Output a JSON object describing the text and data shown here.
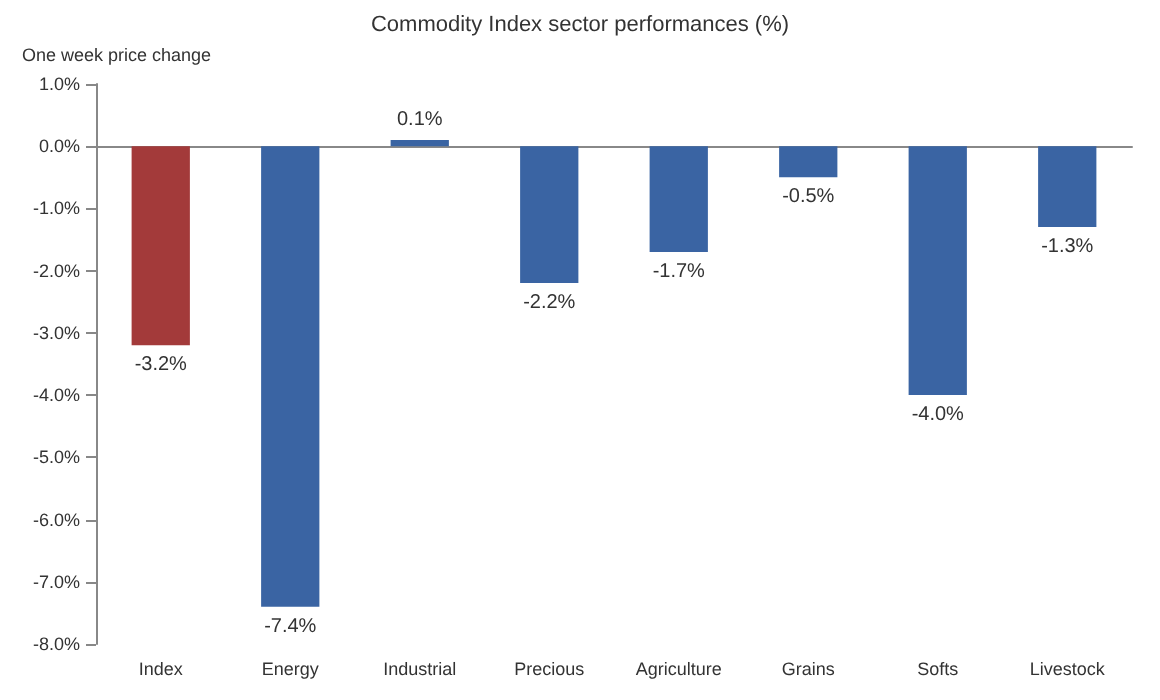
{
  "chart_data": {
    "type": "bar",
    "title": "Commodity Index sector performances (%)",
    "subtitle": "One week price change",
    "categories": [
      "Index",
      "Energy",
      "Industrial",
      "Precious",
      "Agriculture",
      "Grains",
      "Softs",
      "Livestock"
    ],
    "values": [
      -3.2,
      -7.4,
      0.1,
      -2.2,
      -1.7,
      -0.5,
      -4.0,
      -1.3
    ],
    "colors": [
      "#a33a3a",
      "#3a64a3",
      "#3a64a3",
      "#3a64a3",
      "#3a64a3",
      "#3a64a3",
      "#3a64a3",
      "#3a64a3"
    ],
    "value_labels": [
      "-3.2%",
      "-7.4%",
      "0.1%",
      "-2.2%",
      "-1.7%",
      "-0.5%",
      "-4.0%",
      "-1.3%"
    ],
    "ylim": [
      -8,
      1
    ],
    "yticks": [
      {
        "value": -8,
        "label": "-8.0%"
      },
      {
        "value": -7,
        "label": "-7.0%"
      },
      {
        "value": -6,
        "label": "-6.0%"
      },
      {
        "value": -5,
        "label": "-5.0%"
      },
      {
        "value": -4,
        "label": "-4.0%"
      },
      {
        "value": -3,
        "label": "-3.0%"
      },
      {
        "value": -2,
        "label": "-2.0%"
      },
      {
        "value": -1,
        "label": "-1.0%"
      },
      {
        "value": 0,
        "label": "0.0%"
      },
      {
        "value": 1,
        "label": "1.0%"
      }
    ],
    "tick_labels": true
  }
}
